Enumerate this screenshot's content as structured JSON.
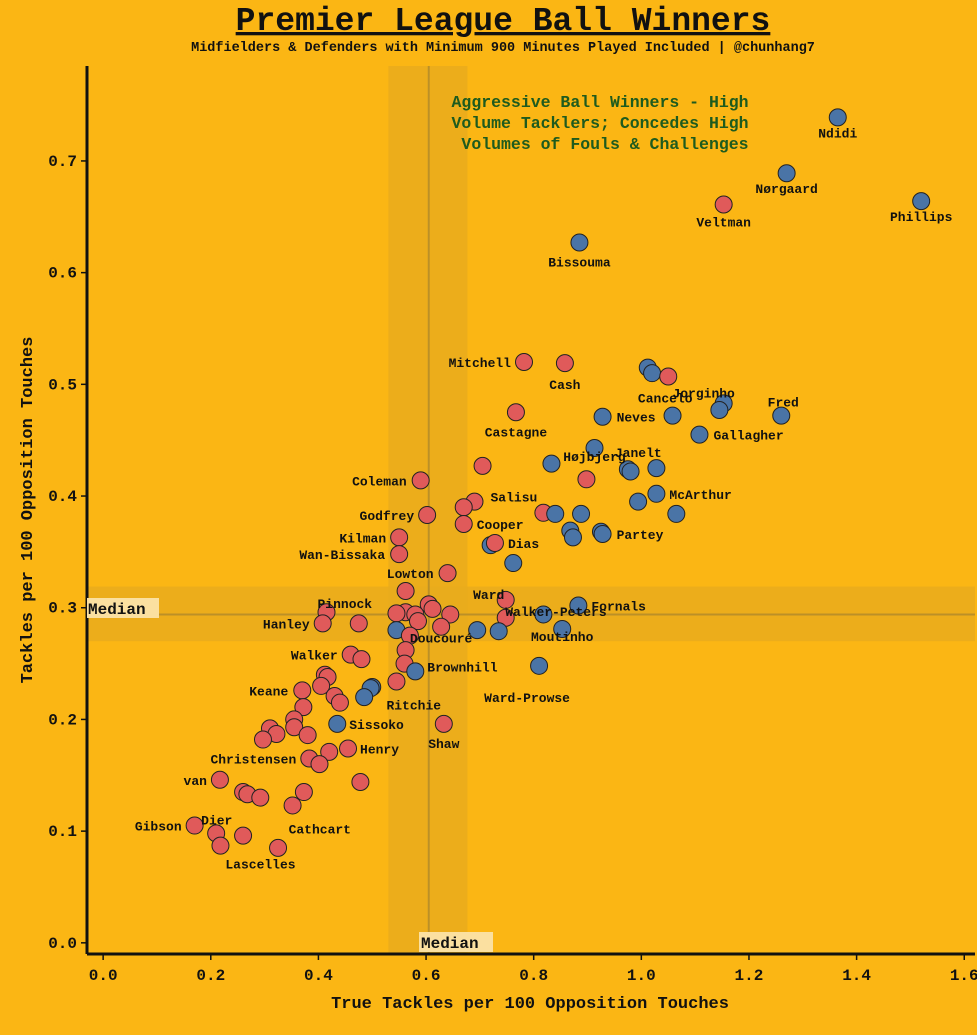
{
  "chart_data": {
    "type": "scatter",
    "title": "Premier League Ball Winners",
    "subtitle": "Midfielders & Defenders with Minimum 900 Minutes Played Included | @chunhang7",
    "xlabel": "True Tackles per 100 Opposition Touches",
    "ylabel": "Tackles per 100 Opposition Touches",
    "xlim": [
      -0.03,
      1.62
    ],
    "ylim": [
      -0.01,
      0.785
    ],
    "x_ticks": [
      "0.0",
      "0.2",
      "0.4",
      "0.6",
      "0.8",
      "1.0",
      "1.2",
      "1.4",
      "1.6"
    ],
    "y_ticks": [
      "0.0",
      "0.1",
      "0.2",
      "0.3",
      "0.4",
      "0.5",
      "0.6",
      "0.7"
    ],
    "grid": false,
    "annotation": "Aggressive Ball Winners - High Volume Tacklers; Concedes High Volumes of Fouls & Challenges",
    "median": {
      "x": 0.605,
      "y": 0.294,
      "x_label": "Median",
      "y_label": "Median",
      "x_band": [
        0.53,
        0.677
      ],
      "y_band": [
        0.27,
        0.319
      ]
    },
    "colors": {
      "background": "#fbb614",
      "blue": "#4a74a6",
      "red": "#e05a5a",
      "band": "#e9ac1c",
      "annotation": "#1e5b1e"
    },
    "points": [
      {
        "x": 1.365,
        "y": 0.739,
        "c": "blue",
        "label": "Ndidi"
      },
      {
        "x": 1.27,
        "y": 0.689,
        "c": "blue",
        "label": "Nørgaard"
      },
      {
        "x": 1.52,
        "y": 0.664,
        "c": "blue",
        "label": "Phillips"
      },
      {
        "x": 1.153,
        "y": 0.661,
        "c": "red",
        "label": "Veltman"
      },
      {
        "x": 0.885,
        "y": 0.627,
        "c": "blue",
        "label": "Bissouma"
      },
      {
        "x": 0.782,
        "y": 0.52,
        "c": "red",
        "label": "Mitchell"
      },
      {
        "x": 0.858,
        "y": 0.519,
        "c": "red",
        "label": "Cash"
      },
      {
        "x": 1.012,
        "y": 0.515,
        "c": "blue"
      },
      {
        "x": 1.02,
        "y": 0.51,
        "c": "blue"
      },
      {
        "x": 1.05,
        "y": 0.507,
        "c": "red",
        "label": "Cancelo"
      },
      {
        "x": 1.153,
        "y": 0.483,
        "c": "blue",
        "label": "Jorginho"
      },
      {
        "x": 1.145,
        "y": 0.477,
        "c": "blue"
      },
      {
        "x": 1.26,
        "y": 0.472,
        "c": "blue",
        "label": "Fred"
      },
      {
        "x": 0.767,
        "y": 0.475,
        "c": "red",
        "label": "Castagne"
      },
      {
        "x": 0.928,
        "y": 0.471,
        "c": "blue",
        "label": "Neves"
      },
      {
        "x": 1.058,
        "y": 0.472,
        "c": "blue"
      },
      {
        "x": 1.108,
        "y": 0.455,
        "c": "blue",
        "label": "Gallagher"
      },
      {
        "x": 0.913,
        "y": 0.443,
        "c": "blue",
        "label": "Højbjerg"
      },
      {
        "x": 0.705,
        "y": 0.427,
        "c": "red"
      },
      {
        "x": 0.833,
        "y": 0.429,
        "c": "blue"
      },
      {
        "x": 0.975,
        "y": 0.424,
        "c": "blue",
        "label": "Janelt"
      },
      {
        "x": 0.98,
        "y": 0.422,
        "c": "blue"
      },
      {
        "x": 1.028,
        "y": 0.425,
        "c": "blue"
      },
      {
        "x": 0.59,
        "y": 0.414,
        "c": "red",
        "label": "Coleman"
      },
      {
        "x": 0.898,
        "y": 0.415,
        "c": "red"
      },
      {
        "x": 1.028,
        "y": 0.402,
        "c": "blue",
        "label": "McArthur"
      },
      {
        "x": 0.69,
        "y": 0.395,
        "c": "red",
        "label": "Salisu"
      },
      {
        "x": 0.994,
        "y": 0.395,
        "c": "blue"
      },
      {
        "x": 0.67,
        "y": 0.39,
        "c": "red"
      },
      {
        "x": 0.602,
        "y": 0.383,
        "c": "red",
        "label": "Godfrey"
      },
      {
        "x": 0.818,
        "y": 0.385,
        "c": "red"
      },
      {
        "x": 0.84,
        "y": 0.384,
        "c": "blue"
      },
      {
        "x": 0.888,
        "y": 0.384,
        "c": "blue"
      },
      {
        "x": 1.065,
        "y": 0.384,
        "c": "blue"
      },
      {
        "x": 0.67,
        "y": 0.375,
        "c": "red",
        "label": "Cooper"
      },
      {
        "x": 0.868,
        "y": 0.369,
        "c": "blue"
      },
      {
        "x": 0.925,
        "y": 0.368,
        "c": "blue"
      },
      {
        "x": 0.928,
        "y": 0.366,
        "c": "blue",
        "label": "Partey"
      },
      {
        "x": 0.873,
        "y": 0.363,
        "c": "blue"
      },
      {
        "x": 0.55,
        "y": 0.363,
        "c": "red",
        "label": "Kilman"
      },
      {
        "x": 0.72,
        "y": 0.356,
        "c": "blue"
      },
      {
        "x": 0.728,
        "y": 0.358,
        "c": "red",
        "label": "Dias"
      },
      {
        "x": 0.55,
        "y": 0.348,
        "c": "red",
        "label": "Wan-Bissaka"
      },
      {
        "x": 0.762,
        "y": 0.34,
        "c": "blue",
        "label": "Walker-Peters"
      },
      {
        "x": 0.64,
        "y": 0.331,
        "c": "red",
        "label": "Lowton"
      },
      {
        "x": 0.562,
        "y": 0.315,
        "c": "red"
      },
      {
        "x": 0.748,
        "y": 0.307,
        "c": "red",
        "label": "Ward"
      },
      {
        "x": 0.883,
        "y": 0.302,
        "c": "blue",
        "label": "Fornals"
      },
      {
        "x": 0.415,
        "y": 0.296,
        "c": "red",
        "label": "Pinnock"
      },
      {
        "x": 0.605,
        "y": 0.303,
        "c": "red"
      },
      {
        "x": 0.612,
        "y": 0.299,
        "c": "red"
      },
      {
        "x": 0.562,
        "y": 0.296,
        "c": "red"
      },
      {
        "x": 0.545,
        "y": 0.295,
        "c": "red"
      },
      {
        "x": 0.58,
        "y": 0.294,
        "c": "red"
      },
      {
        "x": 0.645,
        "y": 0.294,
        "c": "red"
      },
      {
        "x": 0.818,
        "y": 0.294,
        "c": "blue"
      },
      {
        "x": 0.748,
        "y": 0.291,
        "c": "red"
      },
      {
        "x": 0.585,
        "y": 0.288,
        "c": "red"
      },
      {
        "x": 0.408,
        "y": 0.286,
        "c": "red",
        "label": "Hanley"
      },
      {
        "x": 0.475,
        "y": 0.286,
        "c": "red"
      },
      {
        "x": 0.628,
        "y": 0.283,
        "c": "red"
      },
      {
        "x": 0.545,
        "y": 0.28,
        "c": "blue"
      },
      {
        "x": 0.695,
        "y": 0.28,
        "c": "blue"
      },
      {
        "x": 0.735,
        "y": 0.279,
        "c": "blue"
      },
      {
        "x": 0.853,
        "y": 0.281,
        "c": "blue",
        "label": "Moutinho"
      },
      {
        "x": 0.57,
        "y": 0.275,
        "c": "red",
        "label": "Doucouré"
      },
      {
        "x": 0.562,
        "y": 0.262,
        "c": "red"
      },
      {
        "x": 0.46,
        "y": 0.258,
        "c": "red",
        "label": "Walker"
      },
      {
        "x": 0.48,
        "y": 0.254,
        "c": "red"
      },
      {
        "x": 0.56,
        "y": 0.25,
        "c": "red"
      },
      {
        "x": 0.81,
        "y": 0.248,
        "c": "blue",
        "label": "Ward-Prowse"
      },
      {
        "x": 0.58,
        "y": 0.243,
        "c": "blue",
        "label": "Brownhill"
      },
      {
        "x": 0.412,
        "y": 0.24,
        "c": "red"
      },
      {
        "x": 0.417,
        "y": 0.238,
        "c": "red"
      },
      {
        "x": 0.545,
        "y": 0.234,
        "c": "red",
        "label": "Ritchie"
      },
      {
        "x": 0.405,
        "y": 0.23,
        "c": "red"
      },
      {
        "x": 0.5,
        "y": 0.229,
        "c": "blue"
      },
      {
        "x": 0.497,
        "y": 0.228,
        "c": "blue"
      },
      {
        "x": 0.37,
        "y": 0.226,
        "c": "red",
        "label": "Keane"
      },
      {
        "x": 0.43,
        "y": 0.221,
        "c": "red"
      },
      {
        "x": 0.485,
        "y": 0.22,
        "c": "blue"
      },
      {
        "x": 0.44,
        "y": 0.215,
        "c": "red"
      },
      {
        "x": 0.372,
        "y": 0.211,
        "c": "red"
      },
      {
        "x": 0.355,
        "y": 0.2,
        "c": "red"
      },
      {
        "x": 0.435,
        "y": 0.196,
        "c": "blue",
        "label": "Sissoko"
      },
      {
        "x": 0.633,
        "y": 0.196,
        "c": "red",
        "label": "Shaw"
      },
      {
        "x": 0.31,
        "y": 0.192,
        "c": "red"
      },
      {
        "x": 0.355,
        "y": 0.193,
        "c": "red"
      },
      {
        "x": 0.322,
        "y": 0.187,
        "c": "red"
      },
      {
        "x": 0.38,
        "y": 0.186,
        "c": "red"
      },
      {
        "x": 0.297,
        "y": 0.182,
        "c": "red"
      },
      {
        "x": 0.455,
        "y": 0.174,
        "c": "red",
        "label": "Henry"
      },
      {
        "x": 0.42,
        "y": 0.171,
        "c": "red"
      },
      {
        "x": 0.383,
        "y": 0.165,
        "c": "red",
        "label": "Christensen"
      },
      {
        "x": 0.402,
        "y": 0.16,
        "c": "red"
      },
      {
        "x": 0.217,
        "y": 0.146,
        "c": "red",
        "label": "van"
      },
      {
        "x": 0.478,
        "y": 0.144,
        "c": "red"
      },
      {
        "x": 0.26,
        "y": 0.135,
        "c": "red"
      },
      {
        "x": 0.268,
        "y": 0.133,
        "c": "red"
      },
      {
        "x": 0.373,
        "y": 0.135,
        "c": "red"
      },
      {
        "x": 0.292,
        "y": 0.13,
        "c": "red"
      },
      {
        "x": 0.352,
        "y": 0.123,
        "c": "red",
        "label": "Cathcart"
      },
      {
        "x": 0.17,
        "y": 0.105,
        "c": "red",
        "label": "Gibson"
      },
      {
        "x": 0.21,
        "y": 0.098,
        "c": "red",
        "label": "Dier"
      },
      {
        "x": 0.26,
        "y": 0.096,
        "c": "red"
      },
      {
        "x": 0.218,
        "y": 0.087,
        "c": "red",
        "label": "Lascelles"
      },
      {
        "x": 0.325,
        "y": 0.085,
        "c": "red"
      }
    ]
  }
}
